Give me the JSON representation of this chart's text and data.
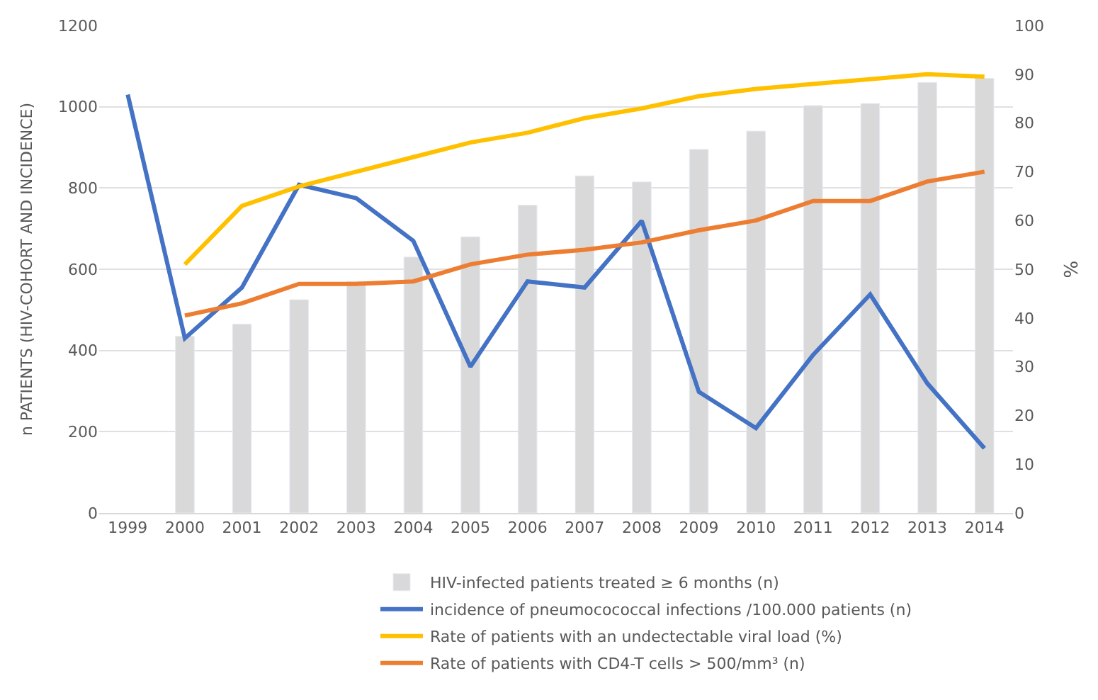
{
  "chart_data": {
    "type": "bar",
    "ylabel": "n PATIENTS (HIV-COHORT AND INCIDENCE)",
    "y2label": "%",
    "categories": [
      "1999",
      "2000",
      "2001",
      "2002",
      "2003",
      "2004",
      "2005",
      "2006",
      "2007",
      "2008",
      "2009",
      "2010",
      "2011",
      "2012",
      "2013",
      "2014"
    ],
    "series": [
      {
        "name": "HIV-infected patients treated ≥ 6 months (n)",
        "color": "#d9d9d9",
        "values": [
          null,
          435,
          465,
          525,
          570,
          630,
          680,
          758,
          830,
          815,
          895,
          940,
          1003,
          1008,
          1060,
          1070
        ]
      },
      {
        "name": "incidence of pneumocococcal infections /100.000 patients (n)",
        "type": "line",
        "color": "#4472c4",
        "values": [
          1030,
          430,
          555,
          808,
          775,
          670,
          360,
          570,
          555,
          719,
          298,
          209,
          389,
          538,
          319,
          159
        ]
      },
      {
        "name": "Rate of patients with an undectectable viral load (%)",
        "type": "line",
        "axis": "y2",
        "color": "#ffc000",
        "values": [
          null,
          51,
          63,
          67,
          70,
          73,
          76,
          78,
          81,
          83,
          85.5,
          87,
          88,
          89,
          90,
          89.5
        ]
      },
      {
        "name": "Rate of patients with CD4-T cells > 500/mm³ (n)",
        "type": "line",
        "axis": "y2",
        "color": "#ed7d31",
        "values": [
          null,
          40.5,
          43,
          47,
          47,
          47.5,
          51,
          53,
          54,
          55.5,
          58,
          60,
          64,
          64,
          68,
          70
        ]
      }
    ],
    "ylim": [
      0,
      1200
    ],
    "yticks": [
      0,
      200,
      400,
      600,
      800,
      1000,
      1200
    ],
    "y2lim": [
      0,
      100
    ],
    "y2ticks": [
      0,
      10,
      20,
      30,
      40,
      50,
      60,
      70,
      80,
      90,
      100
    ],
    "grid": "y",
    "legend": "bottom",
    "marker": "none",
    "line_style": "solid"
  }
}
